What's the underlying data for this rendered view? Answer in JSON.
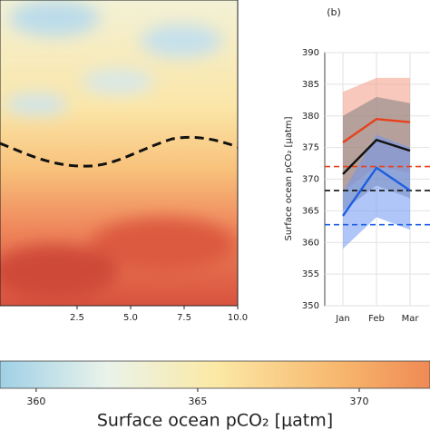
{
  "chart_data": [
    {
      "type": "heatmap",
      "xlim": [
        -1.1,
        10
      ],
      "xticks": [
        2.5,
        {
          "value": 5,
          "label": "5.0"
        },
        {
          "value": 7.5,
          "label": "7.5"
        },
        {
          "value": 10,
          "label": "10.0"
        }
      ]
    },
    {
      "type": "line",
      "title": "(b)",
      "ylabel": "Surface ocean pCO₂ [μatm]",
      "categories": [
        "Jan",
        "Feb",
        "Mar"
      ],
      "ylim": [
        350,
        390
      ],
      "yticks": [
        350,
        355,
        360,
        365,
        370,
        375,
        380,
        385,
        390
      ],
      "grid": true,
      "series": [
        {
          "color": "#e8401c",
          "band_color": "#f29a86",
          "values": [
            375.8,
            379.5,
            379
          ],
          "lower": [
            368,
            372,
            371
          ],
          "upper": [
            383.8,
            386,
            386
          ],
          "ref": 372
        },
        {
          "color": "#111111",
          "band_color": "#808080",
          "values": [
            370.8,
            376.2,
            374.5
          ],
          "lower": [
            365,
            369,
            367
          ],
          "upper": [
            380,
            383,
            382
          ],
          "ref": 368.2
        },
        {
          "color": "#1f5fe0",
          "band_color": "#6f97f2",
          "values": [
            364.2,
            371.8,
            368.2
          ],
          "lower": [
            359,
            364,
            362
          ],
          "upper": [
            368,
            377,
            375
          ],
          "ref": 362.8
        }
      ]
    },
    {
      "type": "colorbar",
      "xlabel": "Surface ocean pCO₂ [μatm]",
      "xlim": [
        358.88,
        372.19
      ],
      "xticks": [
        360,
        365,
        370
      ]
    }
  ]
}
